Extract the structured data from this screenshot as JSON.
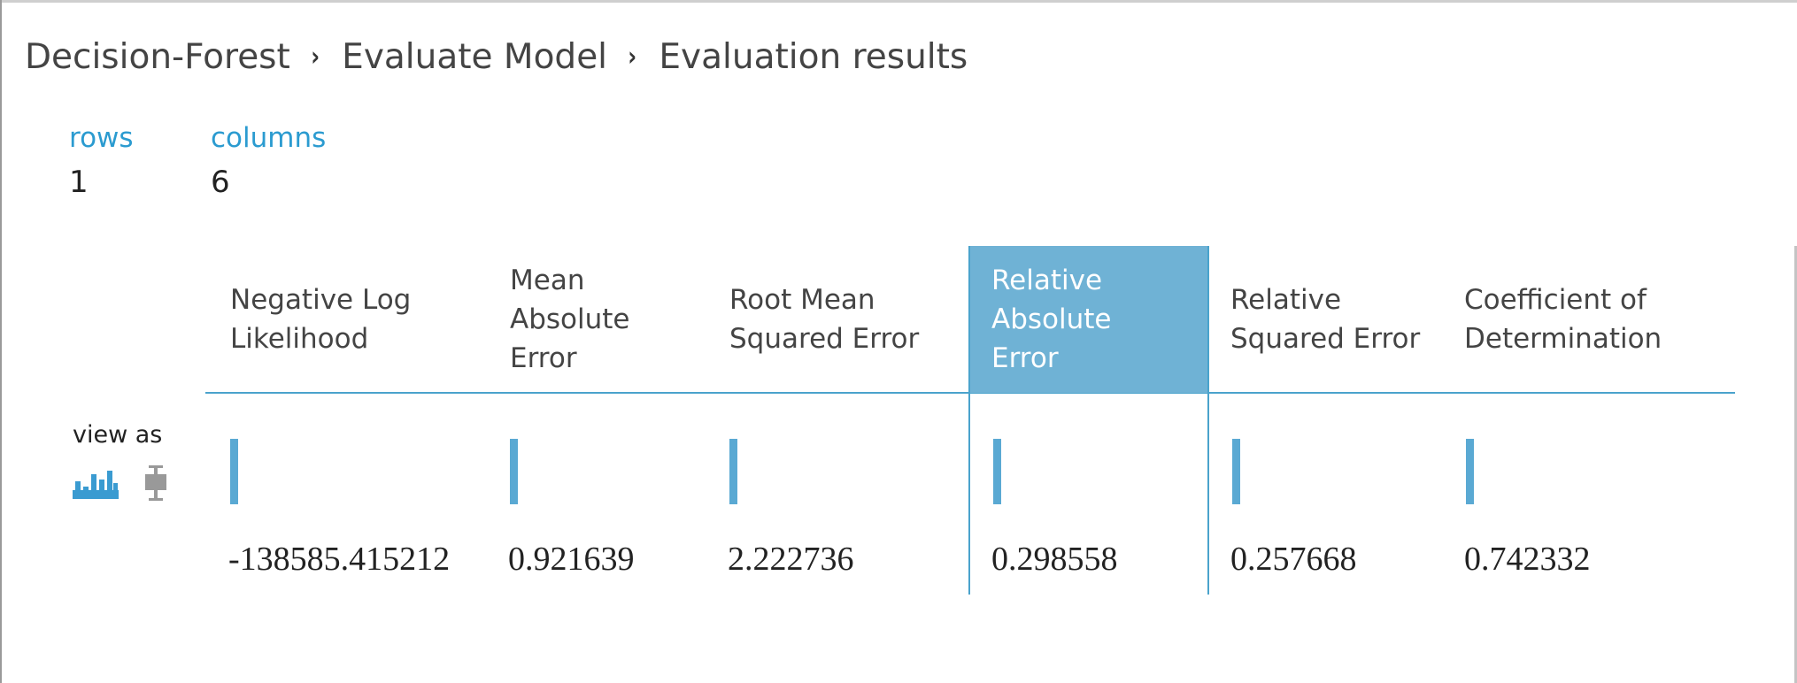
{
  "breadcrumb": {
    "items": [
      "Decision-Forest",
      "Evaluate Model",
      "Evaluation results"
    ],
    "separator": "›"
  },
  "stats": {
    "rows_label": "rows",
    "rows_value": "1",
    "columns_label": "columns",
    "columns_value": "6"
  },
  "view_as": {
    "label": "view as",
    "options": [
      "histogram-icon",
      "boxplot-icon"
    ],
    "selected": "histogram-icon"
  },
  "colors": {
    "accent": "#2b9bd0",
    "selected_header": "#6fb2d5",
    "histogram_bar": "#5aa9d3",
    "inactive_icon": "#999999"
  },
  "table": {
    "selected_column": "Relative Absolute Error",
    "columns": [
      {
        "header_lines": [
          "Negative Log",
          "Likelihood"
        ],
        "value": "-138585.415212"
      },
      {
        "header_lines": [
          "Mean",
          "Absolute",
          "Error"
        ],
        "value": "0.921639"
      },
      {
        "header_lines": [
          "Root Mean",
          "Squared Error"
        ],
        "value": "2.222736"
      },
      {
        "header_lines": [
          "Relative",
          "Absolute",
          "Error"
        ],
        "value": "0.298558"
      },
      {
        "header_lines": [
          "Relative",
          "Squared Error"
        ],
        "value": "0.257668"
      },
      {
        "header_lines": [
          "Coefficient of",
          "Determination"
        ],
        "value": "0.742332"
      }
    ]
  }
}
